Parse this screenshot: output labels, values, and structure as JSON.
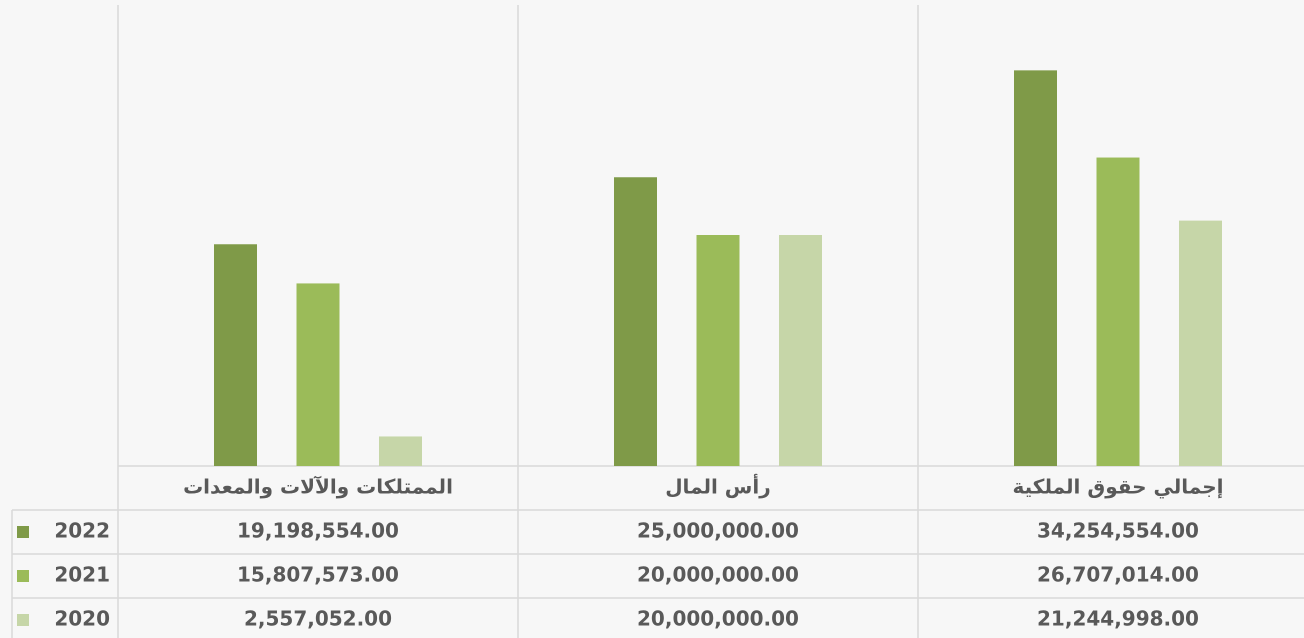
{
  "chart_data": {
    "type": "bar",
    "categories": [
      "إجمالي حقوق الملكية",
      "رأس المال",
      "الممتلكات والآلات والمعدات"
    ],
    "series": [
      {
        "name": "2022",
        "color": "#7f9a48",
        "values": [
          34254554,
          25000000,
          19198554
        ],
        "value_labels": [
          "34,254,554.00",
          "25,000,000.00",
          "19,198,554.00"
        ]
      },
      {
        "name": "2021",
        "color": "#9bbb59",
        "values": [
          26707014,
          20000000,
          15807573
        ],
        "value_labels": [
          "26,707,014.00",
          "20,000,000.00",
          "15,807,573.00"
        ]
      },
      {
        "name": "2020",
        "color": "#c6d6a8",
        "values": [
          21244998,
          20000000,
          2557052
        ],
        "value_labels": [
          "21,244,998.00",
          "20,000,000.00",
          "2,557,052.00"
        ]
      }
    ],
    "ylim": [
      0,
      40000000
    ]
  }
}
